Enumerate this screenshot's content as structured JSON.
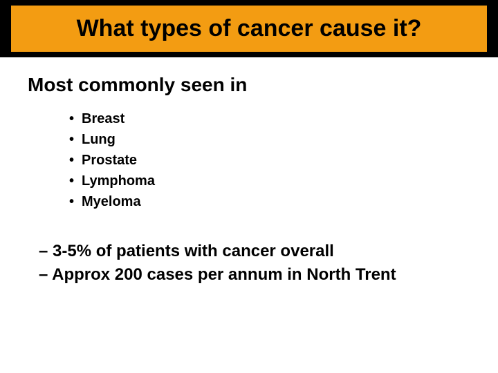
{
  "title": "What types of cancer cause it?",
  "subtitle": "Most commonly seen in",
  "bullets": [
    "Breast",
    "Lung",
    "Prostate",
    "Lymphoma",
    "Myeloma"
  ],
  "stats": [
    "– 3-5% of patients with cancer overall",
    "– Approx 200 cases per annum in North Trent"
  ],
  "colors": {
    "title_bar_bg": "#000000",
    "title_inner_bg": "#f39c12",
    "page_bg": "#ffffff",
    "text": "#000000"
  },
  "typography": {
    "title_fontsize": 34,
    "subtitle_fontsize": 28,
    "bullet_fontsize": 20,
    "stats_fontsize": 24,
    "font_family": "Arial",
    "weight": "bold"
  }
}
